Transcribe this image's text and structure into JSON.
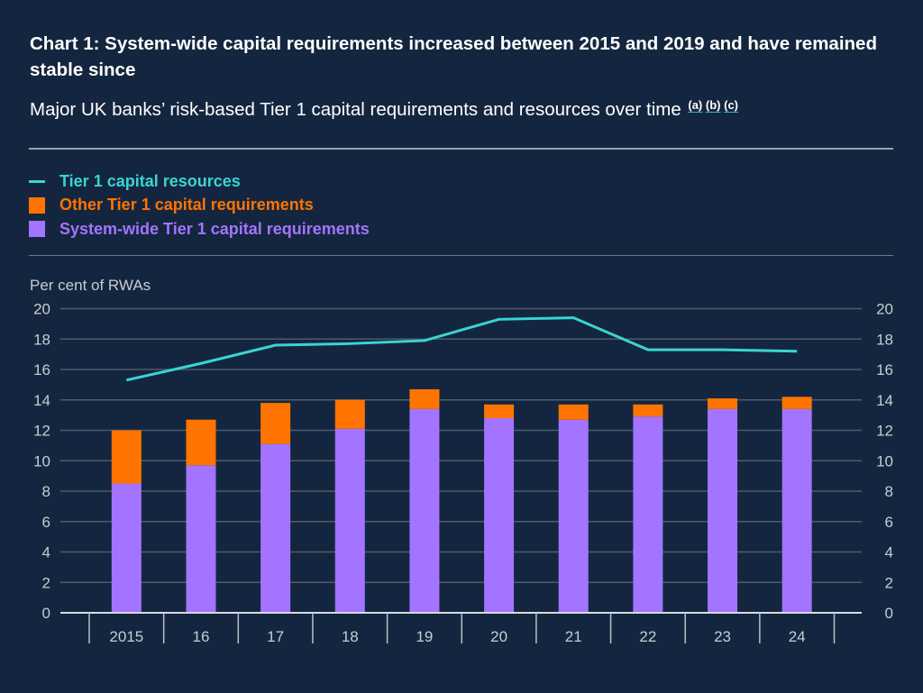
{
  "header": {
    "title": "Chart 1: System-wide capital requirements increased between 2015 and 2019 and have remained stable since",
    "subtitle": "Major UK banks’ risk-based Tier 1 capital requirements and resources over time",
    "footnotes": [
      "(a)",
      "(b)",
      "(c)"
    ]
  },
  "colors": {
    "background": "#14263f",
    "resources_line": "#3ad4d2",
    "other_requirements": "#ff7400",
    "system_wide_requirements": "#a374ff",
    "gridline": "#4b5a6e",
    "axis": "#c7ccd3"
  },
  "chart_data": {
    "type": "bar",
    "stacked": true,
    "title": "Chart 1: System-wide capital requirements increased between 2015 and 2019 and have remained stable since",
    "subtitle": "Major UK banks’ risk-based Tier 1 capital requirements and resources over time",
    "xlabel": "",
    "ylabel": "Per cent of RWAs",
    "ylim": [
      0,
      20
    ],
    "yticks": [
      0,
      2,
      4,
      6,
      8,
      10,
      12,
      14,
      16,
      18,
      20
    ],
    "y_axis_sides": [
      "left",
      "right"
    ],
    "grid": true,
    "legend_position": "top-left",
    "categories": [
      "2015",
      "16",
      "17",
      "18",
      "19",
      "20",
      "21",
      "22",
      "23",
      "24"
    ],
    "series": [
      {
        "name": "System-wide Tier 1 capital requirements",
        "type": "bar",
        "color": "#a374ff",
        "values": [
          8.5,
          9.7,
          11.1,
          12.1,
          13.4,
          12.8,
          12.7,
          12.9,
          13.4,
          13.4
        ]
      },
      {
        "name": "Other Tier 1 capital requirements",
        "type": "bar",
        "color": "#ff7400",
        "values": [
          3.5,
          3.0,
          2.7,
          1.9,
          1.3,
          0.9,
          1.0,
          0.8,
          0.7,
          0.8
        ]
      },
      {
        "name": "Tier 1 capital resources",
        "type": "line",
        "color": "#3ad4d2",
        "values": [
          15.3,
          16.4,
          17.6,
          17.7,
          17.9,
          19.3,
          19.4,
          17.3,
          17.3,
          17.2
        ]
      }
    ],
    "legend": [
      {
        "label": "Tier 1 capital resources",
        "marker": "line",
        "color": "#3ad4d2"
      },
      {
        "label": "Other Tier 1 capital requirements",
        "marker": "square",
        "color": "#ff7400"
      },
      {
        "label": "System-wide Tier 1 capital requirements",
        "marker": "square",
        "color": "#a374ff"
      }
    ]
  }
}
